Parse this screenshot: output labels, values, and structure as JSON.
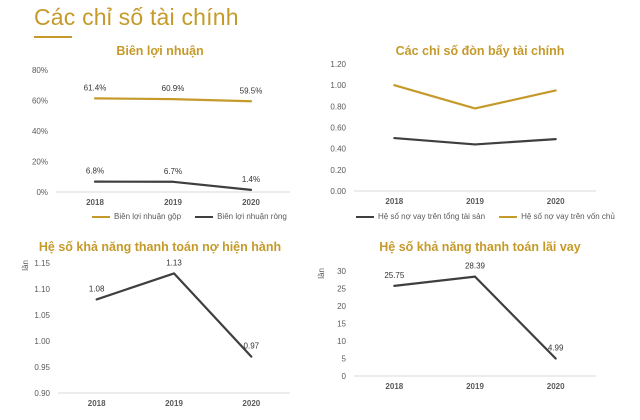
{
  "page": {
    "title": "Các chỉ số tài chính",
    "accent": "#C59A2A"
  },
  "chart_data": [
    {
      "id": "profit-margin",
      "type": "line",
      "title": "Biên lợi nhuận",
      "categories": [
        "2018",
        "2019",
        "2020"
      ],
      "ylim": [
        0,
        80
      ],
      "yticks": [
        "0%",
        "20%",
        "40%",
        "60%",
        "80%"
      ],
      "ytick_values": [
        0,
        20,
        40,
        60,
        80
      ],
      "ylabel": "",
      "grid": false,
      "legend": "bottom",
      "series": [
        {
          "name": "Biên lợi nhuận gộp",
          "color": "#C59A2A",
          "values": [
            61.4,
            60.9,
            59.5
          ],
          "labels": [
            "61.4%",
            "60.9%",
            "59.5%"
          ]
        },
        {
          "name": "Biên lợi nhuận ròng",
          "color": "#3F3F3F",
          "values": [
            6.8,
            6.7,
            1.4
          ],
          "labels": [
            "6.8%",
            "6.7%",
            "1.4%"
          ]
        }
      ]
    },
    {
      "id": "leverage",
      "type": "line",
      "title": "Các chỉ số đòn bẩy tài chính",
      "categories": [
        "2018",
        "2019",
        "2020"
      ],
      "ylim": [
        0,
        1.2
      ],
      "yticks": [
        "0.00",
        "0.20",
        "0.40",
        "0.60",
        "0.80",
        "1.00",
        "1.20"
      ],
      "ytick_values": [
        0,
        0.2,
        0.4,
        0.6,
        0.8,
        1.0,
        1.2
      ],
      "ylabel": "",
      "grid": false,
      "legend": "bottom",
      "series": [
        {
          "name": "Hệ số nợ vay trên tổng tài sản",
          "color": "#3F3F3F",
          "values": [
            0.5,
            0.44,
            0.49
          ],
          "labels": [
            "",
            "",
            ""
          ]
        },
        {
          "name": "Hệ số nợ vay trên vốn chủ",
          "color": "#C59A2A",
          "values": [
            1.0,
            0.78,
            0.95
          ],
          "labels": [
            "",
            "",
            ""
          ]
        }
      ]
    },
    {
      "id": "current-ratio",
      "type": "line",
      "title": "Hệ số khả năng thanh toán nợ hiện hành",
      "categories": [
        "2018",
        "2019",
        "2020"
      ],
      "ylim": [
        0.9,
        1.15
      ],
      "yticks": [
        "0.90",
        "0.95",
        "1.00",
        "1.05",
        "1.10",
        "1.15"
      ],
      "ytick_values": [
        0.9,
        0.95,
        1.0,
        1.05,
        1.1,
        1.15
      ],
      "ylabel": "lần",
      "grid": false,
      "legend": "none",
      "series": [
        {
          "name": "",
          "color": "#3F3F3F",
          "values": [
            1.08,
            1.13,
            0.97
          ],
          "labels": [
            "1.08",
            "1.13",
            "0.97"
          ]
        }
      ]
    },
    {
      "id": "interest-coverage",
      "type": "line",
      "title": "Hệ số khả năng thanh toán lãi vay",
      "categories": [
        "2018",
        "2019",
        "2020"
      ],
      "ylim": [
        0,
        30
      ],
      "yticks": [
        "0",
        "5",
        "10",
        "15",
        "20",
        "25",
        "30"
      ],
      "ytick_values": [
        0,
        5,
        10,
        15,
        20,
        25,
        30
      ],
      "ylabel": "lần",
      "grid": false,
      "legend": "none",
      "series": [
        {
          "name": "",
          "color": "#3F3F3F",
          "values": [
            25.75,
            28.39,
            4.99
          ],
          "labels": [
            "25.75",
            "28.39",
            "4.99"
          ]
        }
      ]
    }
  ]
}
